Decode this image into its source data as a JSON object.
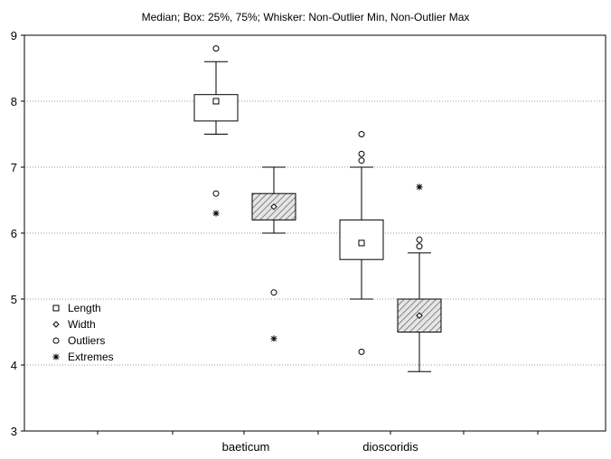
{
  "chart_data": {
    "type": "boxplot",
    "title": "Median;  Box: 25%, 75%;  Whisker: Non-Outlier Min, Non-Outlier Max",
    "xlabel": "",
    "ylabel": "",
    "ylim": [
      3,
      9
    ],
    "yticks": [
      3,
      4,
      5,
      6,
      7,
      8,
      9
    ],
    "grid": true,
    "legend_position": "left",
    "categories": [
      "baeticum",
      "dioscoridis"
    ],
    "legend": [
      {
        "key": "length",
        "label": "Length",
        "marker": "square"
      },
      {
        "key": "width",
        "label": "Width",
        "marker": "diamond"
      },
      {
        "key": "outliers",
        "label": "Outliers",
        "marker": "circle"
      },
      {
        "key": "extremes",
        "label": "Extremes",
        "marker": "asterisk"
      }
    ],
    "series": [
      {
        "name": "Length",
        "fill": "white",
        "boxes": [
          {
            "category": "baeticum",
            "median": 8.0,
            "q1": 7.7,
            "q3": 8.1,
            "whisker_low": 7.5,
            "whisker_high": 8.6,
            "outliers": [
              8.8,
              6.6
            ],
            "extremes": [
              6.3
            ]
          },
          {
            "category": "dioscoridis",
            "median": 5.85,
            "q1": 5.6,
            "q3": 6.2,
            "whisker_low": 5.0,
            "whisker_high": 7.0,
            "outliers": [
              7.5,
              7.2,
              7.1,
              4.2
            ],
            "extremes": []
          }
        ]
      },
      {
        "name": "Width",
        "fill": "hatched",
        "boxes": [
          {
            "category": "baeticum",
            "median": 6.4,
            "q1": 6.2,
            "q3": 6.6,
            "whisker_low": 6.0,
            "whisker_high": 7.0,
            "outliers": [
              5.1
            ],
            "extremes": [
              4.4
            ]
          },
          {
            "category": "dioscoridis",
            "median": 4.75,
            "q1": 4.5,
            "q3": 5.0,
            "whisker_low": 3.9,
            "whisker_high": 5.7,
            "outliers": [
              5.9,
              5.8
            ],
            "extremes": [
              6.7
            ]
          }
        ]
      }
    ]
  }
}
